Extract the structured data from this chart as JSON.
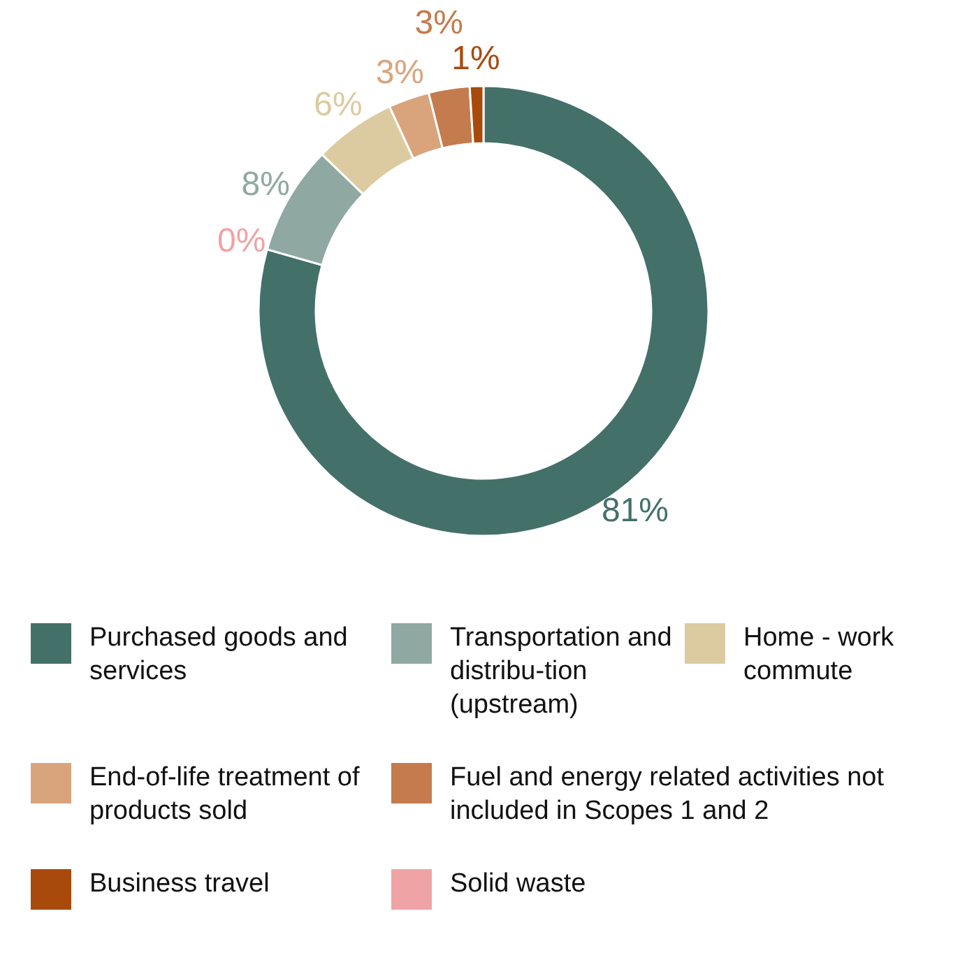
{
  "chart_data": {
    "type": "donut",
    "categories": [
      "Purchased goods and services",
      "Solid waste",
      "Transportation and distribu-tion (upstream)",
      "Home - work commute",
      "End-of-life treatment of products sold",
      "Fuel and energy related activities not included in Scopes 1 and 2",
      "Business travel"
    ],
    "values": [
      81,
      0,
      8,
      6,
      3,
      3,
      1
    ],
    "colors": [
      "#44706a",
      "#f0a3a5",
      "#8fa9a2",
      "#dccba0",
      "#d9a47c",
      "#c47b4e",
      "#a84a0c"
    ],
    "value_labels": [
      "81%",
      "0%",
      "8%",
      "6%",
      "3%",
      "3%",
      "1%"
    ],
    "legend": "bottom"
  }
}
